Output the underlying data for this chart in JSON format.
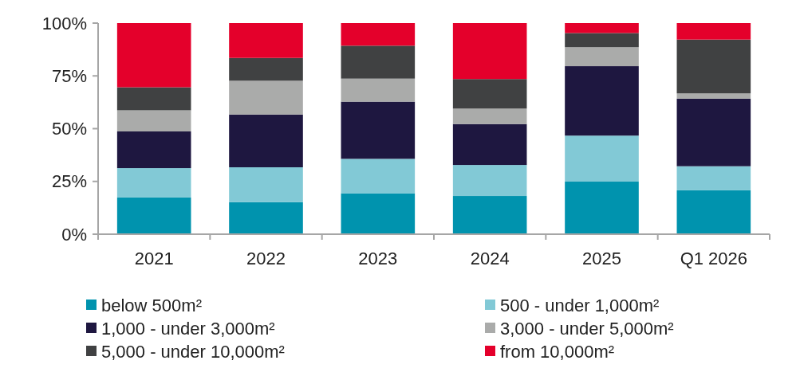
{
  "chart_data": {
    "type": "bar",
    "stacked": true,
    "categories": [
      "2021",
      "2022",
      "2023",
      "2024",
      "2025",
      "Q1 2026"
    ],
    "series": [
      {
        "name": "below 500m²",
        "color": "#0093ae",
        "values": [
          17.4,
          15.2,
          19.4,
          18.1,
          24.9,
          20.8
        ]
      },
      {
        "name": "500 - under 1,000m²",
        "color": "#82c9d6",
        "values": [
          13.9,
          16.5,
          16.3,
          14.7,
          21.8,
          11.4
        ]
      },
      {
        "name": "1,000 - under 3,000m²",
        "color": "#1e1740",
        "values": [
          17.4,
          25.0,
          27.1,
          19.4,
          32.9,
          32.0
        ]
      },
      {
        "name": "3,000 - under 5,000m²",
        "color": "#aaabaa",
        "values": [
          10.0,
          16.0,
          10.9,
          7.3,
          9.0,
          2.5
        ]
      },
      {
        "name": "5,000 - under 10,000m²",
        "color": "#404142",
        "values": [
          10.9,
          10.8,
          15.6,
          14.0,
          6.7,
          25.5
        ]
      },
      {
        "name": "from 10,000m²",
        "color": "#e4002b",
        "values": [
          30.4,
          16.5,
          10.7,
          26.5,
          4.7,
          7.8
        ]
      }
    ],
    "ylim": [
      0,
      100
    ],
    "yticks": [
      {
        "value": 0,
        "label": "0%"
      },
      {
        "value": 25,
        "label": "25%"
      },
      {
        "value": 50,
        "label": "50%"
      },
      {
        "value": 75,
        "label": "75%"
      },
      {
        "value": 100,
        "label": "100%"
      }
    ],
    "grid": false,
    "legend": "bottom"
  }
}
